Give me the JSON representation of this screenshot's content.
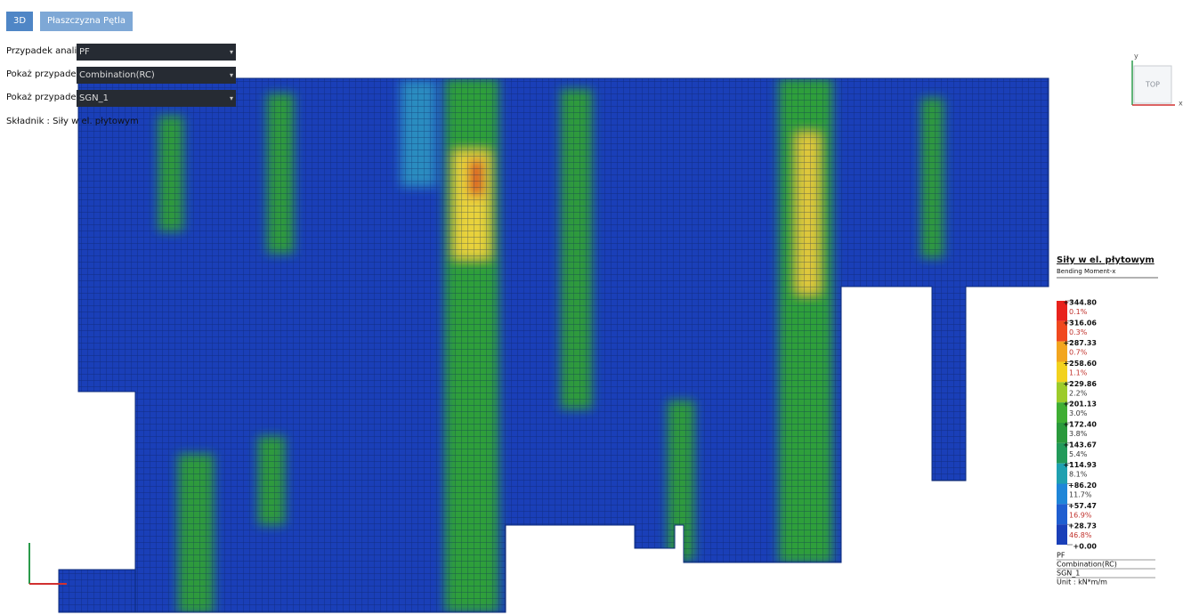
{
  "tabs": [
    "3D",
    "Płaszczyzna Pętla"
  ],
  "controls": [
    {
      "label": "Przypadek analiz",
      "value": "PF"
    },
    {
      "label": "Pokaż przypadek",
      "value": "Combination(RC)"
    },
    {
      "label": "Pokaż przypadek",
      "value": "SGN_1"
    }
  ],
  "component": "Składnik : Siły w el. płytowym",
  "view_cube": {
    "label": "TOP",
    "x": "x",
    "y": "y"
  },
  "legend": {
    "title": "Siły w el. płytowym",
    "subtitle": "Bending Moment-x",
    "levels": [
      "+344.80",
      "+316.06",
      "+287.33",
      "+258.60",
      "+229.86",
      "+201.13",
      "+172.40",
      "+143.67",
      "+114.93",
      "+86.20",
      "+57.47",
      "+28.73",
      "+0.00"
    ],
    "bands": [
      {
        "percent": "0.1%",
        "color": "#e8221c"
      },
      {
        "percent": "0.3%",
        "color": "#f0481e"
      },
      {
        "percent": "0.7%",
        "color": "#f2a51e"
      },
      {
        "percent": "1.1%",
        "color": "#f2d21e"
      },
      {
        "percent": "2.2%",
        "color": "#9ccb2a"
      },
      {
        "percent": "3.0%",
        "color": "#3fae33"
      },
      {
        "percent": "3.8%",
        "color": "#2a9a3c"
      },
      {
        "percent": "5.4%",
        "color": "#229a5a"
      },
      {
        "percent": "8.1%",
        "color": "#1fa0b0"
      },
      {
        "percent": "11.7%",
        "color": "#1f86d8"
      },
      {
        "percent": "16.9%",
        "color": "#1f5ed0"
      },
      {
        "percent": "46.8%",
        "color": "#1a3fb8"
      }
    ],
    "footer": [
      "PF",
      "Combination(RC)",
      "SGN_1",
      "Unit : kN*m/m"
    ]
  }
}
